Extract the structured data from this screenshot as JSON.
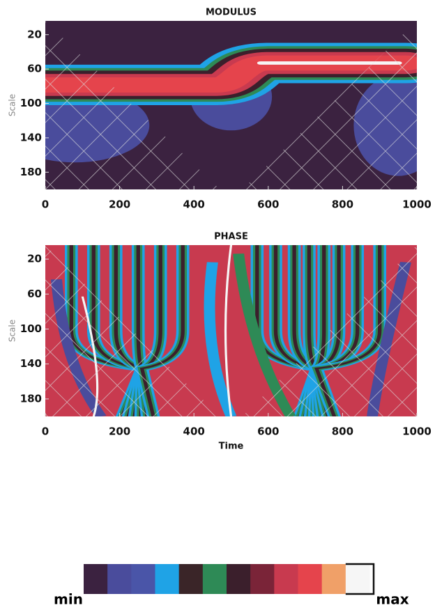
{
  "chart_data": [
    {
      "type": "heatmap",
      "title": "MODULUS",
      "ylabel": "Scale",
      "xlim": [
        0,
        1000
      ],
      "xticks": [
        0,
        200,
        400,
        600,
        800,
        1000
      ],
      "ylim": [
        200,
        4
      ],
      "yticks": [
        20,
        60,
        100,
        140,
        180
      ]
    },
    {
      "type": "heatmap",
      "title": "PHASE",
      "ylabel": "Scale",
      "xlabel": "Time",
      "xlim": [
        0,
        1000
      ],
      "xticks": [
        0,
        200,
        400,
        600,
        800,
        1000
      ],
      "ylim": [
        200,
        4
      ],
      "yticks": [
        20,
        60,
        100,
        140,
        180
      ]
    }
  ],
  "colorbar": {
    "colors": [
      "#3b2240",
      "#4a4c9c",
      "#4a55a8",
      "#1fa3e6",
      "#3a2528",
      "#2e8a56",
      "#3b1f2c",
      "#7a2438",
      "#c83a4f",
      "#e5444c",
      "#f0a068",
      "#f6f6f6"
    ],
    "min_label": "min",
    "max_label": "max"
  }
}
